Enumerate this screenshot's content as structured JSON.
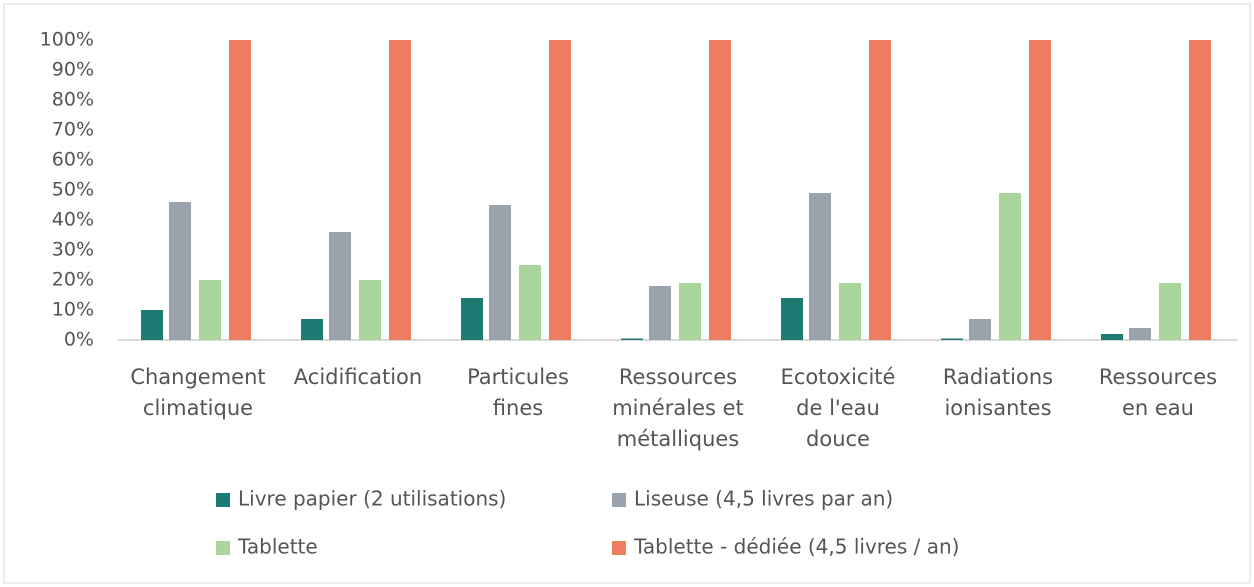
{
  "chart_data": {
    "type": "bar",
    "categories": [
      "Changement\nclimatique",
      "Acidification",
      "Particules\nfines",
      "Ressources\nminérales et\nmétalliques",
      "Ecotoxicité\nde l'eau\ndouce",
      "Radiations\nionisantes",
      "Ressources\nen eau"
    ],
    "series": [
      {
        "name": "Livre papier (2 utilisations)",
        "color": "#1b7b72",
        "values": [
          10,
          7,
          14,
          0.5,
          14,
          0.5,
          2
        ]
      },
      {
        "name": "Liseuse (4,5 livres par an)",
        "color": "#9aa2ab",
        "values": [
          46,
          36,
          45,
          18,
          49,
          7,
          4
        ]
      },
      {
        "name": "Tablette",
        "color": "#aad59b",
        "values": [
          20,
          20,
          25,
          19,
          19,
          49,
          19
        ]
      },
      {
        "name": "Tablette - dédiée (4,5 livres / an)",
        "color": "#ef7d62",
        "values": [
          100,
          100,
          100,
          100,
          100,
          100,
          100
        ]
      }
    ],
    "ylim": [
      0,
      100
    ],
    "yticks": [
      {
        "value": 0,
        "label": "0%"
      },
      {
        "value": 10,
        "label": "10%"
      },
      {
        "value": 20,
        "label": "20%"
      },
      {
        "value": 30,
        "label": "30%"
      },
      {
        "value": 40,
        "label": "40%"
      },
      {
        "value": 50,
        "label": "50%"
      },
      {
        "value": 60,
        "label": "60%"
      },
      {
        "value": 70,
        "label": "70%"
      },
      {
        "value": 80,
        "label": "80%"
      },
      {
        "value": 90,
        "label": "90%"
      },
      {
        "value": 100,
        "label": "100%"
      }
    ],
    "grid": false,
    "legend": "bottom"
  }
}
